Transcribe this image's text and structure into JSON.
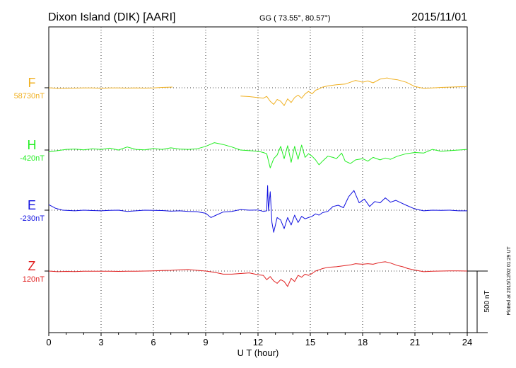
{
  "header": {
    "station": "Dixon Island (DIK)  [AARI]",
    "coords": "GG ( 73.55°,  80.57°)",
    "date": "2015/11/01"
  },
  "footer": {
    "plotted": "Plotted at 2015/12/02 01:29 UT",
    "scale_label": "500 nT"
  },
  "chart_data": {
    "type": "line",
    "xlabel": "U T (hour)",
    "xlim": [
      0,
      24
    ],
    "xticks": [
      "0",
      "3",
      "6",
      "9",
      "12",
      "15",
      "18",
      "21",
      "24"
    ],
    "grid": true,
    "scale_bar_nT": 500,
    "series": [
      {
        "name": "F",
        "baseline_label": "58730nT",
        "color": "#f0b020",
        "segments": [
          {
            "t": [
              0,
              0.5,
              1,
              1.5,
              2,
              2.5,
              3,
              3.5,
              4,
              4.5,
              5,
              5.5,
              6,
              6.5,
              7,
              7.1
            ],
            "v": [
              0,
              -5,
              -4,
              -3,
              -2,
              -1,
              -4,
              -1,
              -2,
              -3,
              -1,
              -3,
              -1,
              3,
              5,
              6
            ]
          },
          {
            "t": [
              11,
              11.5,
              12,
              12.3,
              12.5,
              12.7,
              12.9,
              13.1,
              13.3,
              13.5,
              13.7,
              13.9,
              14.1,
              14.3,
              14.5,
              14.7,
              14.9,
              15.1,
              15.3,
              15.5,
              15.7,
              16,
              16.5,
              17,
              17.3,
              17.6,
              18,
              18.3,
              18.6,
              19,
              19.4,
              19.7,
              20,
              20.5,
              21,
              21.5,
              22,
              22.5,
              23,
              23.5,
              24
            ],
            "v": [
              -68,
              -72,
              -80,
              -85,
              -70,
              -110,
              -135,
              -95,
              -110,
              -145,
              -90,
              -120,
              -80,
              -60,
              -85,
              -50,
              -30,
              -50,
              -20,
              -10,
              5,
              15,
              25,
              30,
              45,
              60,
              45,
              55,
              40,
              70,
              80,
              70,
              65,
              45,
              10,
              -5,
              -2,
              3,
              5,
              8,
              10
            ]
          }
        ]
      },
      {
        "name": "H",
        "baseline_label": "-420nT",
        "color": "#22ee22",
        "segments": [
          {
            "t": [
              0,
              0.5,
              1,
              1.5,
              2,
              2.5,
              3,
              3.5,
              4,
              4.5,
              5,
              5.5,
              6,
              6.5,
              7,
              7.5,
              8,
              8.5,
              9,
              9.5,
              10,
              10.5,
              11,
              11.5,
              12,
              12.3,
              12.5,
              12.7,
              12.9,
              13.1,
              13.3,
              13.5,
              13.7,
              13.9,
              14.1,
              14.3,
              14.5,
              14.7,
              14.9,
              15.1,
              15.3,
              15.5,
              15.7,
              16,
              16.3,
              16.5,
              16.8,
              17,
              17.3,
              17.6,
              18,
              18.3,
              18.6,
              19,
              19.3,
              19.6,
              20,
              20.5,
              21,
              21.5,
              22,
              22.5,
              23,
              23.5,
              24
            ],
            "v": [
              -15,
              -5,
              5,
              8,
              2,
              10,
              5,
              15,
              0,
              25,
              5,
              2,
              12,
              5,
              18,
              8,
              5,
              10,
              30,
              60,
              45,
              25,
              0,
              -5,
              -10,
              -20,
              -30,
              -145,
              -70,
              -40,
              30,
              -70,
              35,
              -100,
              30,
              -75,
              40,
              -60,
              -30,
              -50,
              -80,
              -120,
              -90,
              -50,
              -60,
              -70,
              -25,
              -90,
              -110,
              -80,
              -70,
              -90,
              -60,
              -80,
              -65,
              -75,
              -50,
              -30,
              -20,
              -25,
              5,
              -10,
              -5,
              0,
              5
            ]
          }
        ]
      },
      {
        "name": "E",
        "baseline_label": "-230nT",
        "color": "#1010e0",
        "segments": [
          {
            "t": [
              0,
              0.4,
              0.8,
              1.5,
              2,
              2.5,
              3,
              3.5,
              4,
              4.5,
              5,
              5.5,
              6,
              6.5,
              7,
              7.5,
              8,
              8.5,
              9,
              9.3,
              9.6,
              10,
              10.5,
              11,
              11.5,
              12,
              12.3,
              12.5,
              12.55,
              12.6,
              12.7,
              12.8,
              12.9,
              13.1,
              13.3,
              13.5,
              13.7,
              13.9,
              14.1,
              14.3,
              14.5,
              14.7,
              14.9,
              15.1,
              15.3,
              15.5,
              15.7,
              16,
              16.3,
              16.6,
              16.9,
              17.2,
              17.5,
              17.8,
              18.1,
              18.4,
              18.7,
              19,
              19.3,
              19.6,
              19.9,
              20.2,
              20.5,
              21,
              21.5,
              22,
              22.5,
              23,
              23.5,
              24
            ],
            "v": [
              45,
              15,
              0,
              -5,
              0,
              -3,
              -5,
              -2,
              0,
              -10,
              -5,
              0,
              -2,
              -3,
              -8,
              -5,
              -10,
              -12,
              -25,
              -60,
              -40,
              -15,
              -10,
              5,
              0,
              2,
              -10,
              -5,
              200,
              -5,
              150,
              -100,
              -180,
              -60,
              -80,
              -150,
              -60,
              -120,
              -40,
              -100,
              -50,
              -70,
              -60,
              -50,
              -30,
              -40,
              -20,
              -10,
              30,
              40,
              20,
              110,
              160,
              60,
              90,
              30,
              70,
              60,
              100,
              65,
              80,
              60,
              40,
              10,
              -5,
              0,
              -2,
              0,
              -5,
              -5
            ]
          }
        ]
      },
      {
        "name": "Z",
        "baseline_label": "120nT",
        "color": "#e02020",
        "segments": [
          {
            "t": [
              0,
              0.5,
              1,
              1.5,
              2,
              2.5,
              3,
              3.5,
              4,
              4.5,
              5,
              5.5,
              6,
              6.5,
              7,
              7.5,
              8,
              8.5,
              9,
              9.5,
              10,
              10.5,
              11,
              11.5,
              12,
              12.3,
              12.5,
              12.7,
              12.9,
              13.1,
              13.3,
              13.5,
              13.7,
              13.9,
              14.1,
              14.3,
              14.5,
              14.7,
              14.9,
              15.1,
              15.3,
              15.5,
              15.7,
              16,
              16.5,
              17,
              17.3,
              17.6,
              18,
              18.3,
              18.6,
              19,
              19.3,
              19.6,
              20,
              20.3,
              20.6,
              21,
              21.5,
              22,
              22.5,
              23,
              23.5,
              24
            ],
            "v": [
              0,
              -5,
              -3,
              -4,
              -2,
              -1,
              -2,
              -1,
              -3,
              -2,
              -2,
              0,
              2,
              4,
              6,
              10,
              12,
              6,
              0,
              -10,
              -25,
              -25,
              -20,
              -15,
              -30,
              -35,
              -70,
              -45,
              -80,
              -100,
              -70,
              -85,
              -125,
              -60,
              -85,
              -35,
              -50,
              -25,
              -35,
              -20,
              0,
              10,
              20,
              30,
              35,
              45,
              50,
              60,
              55,
              60,
              55,
              70,
              75,
              65,
              45,
              35,
              20,
              8,
              -5,
              -2,
              0,
              2,
              2,
              0
            ]
          }
        ]
      }
    ]
  }
}
